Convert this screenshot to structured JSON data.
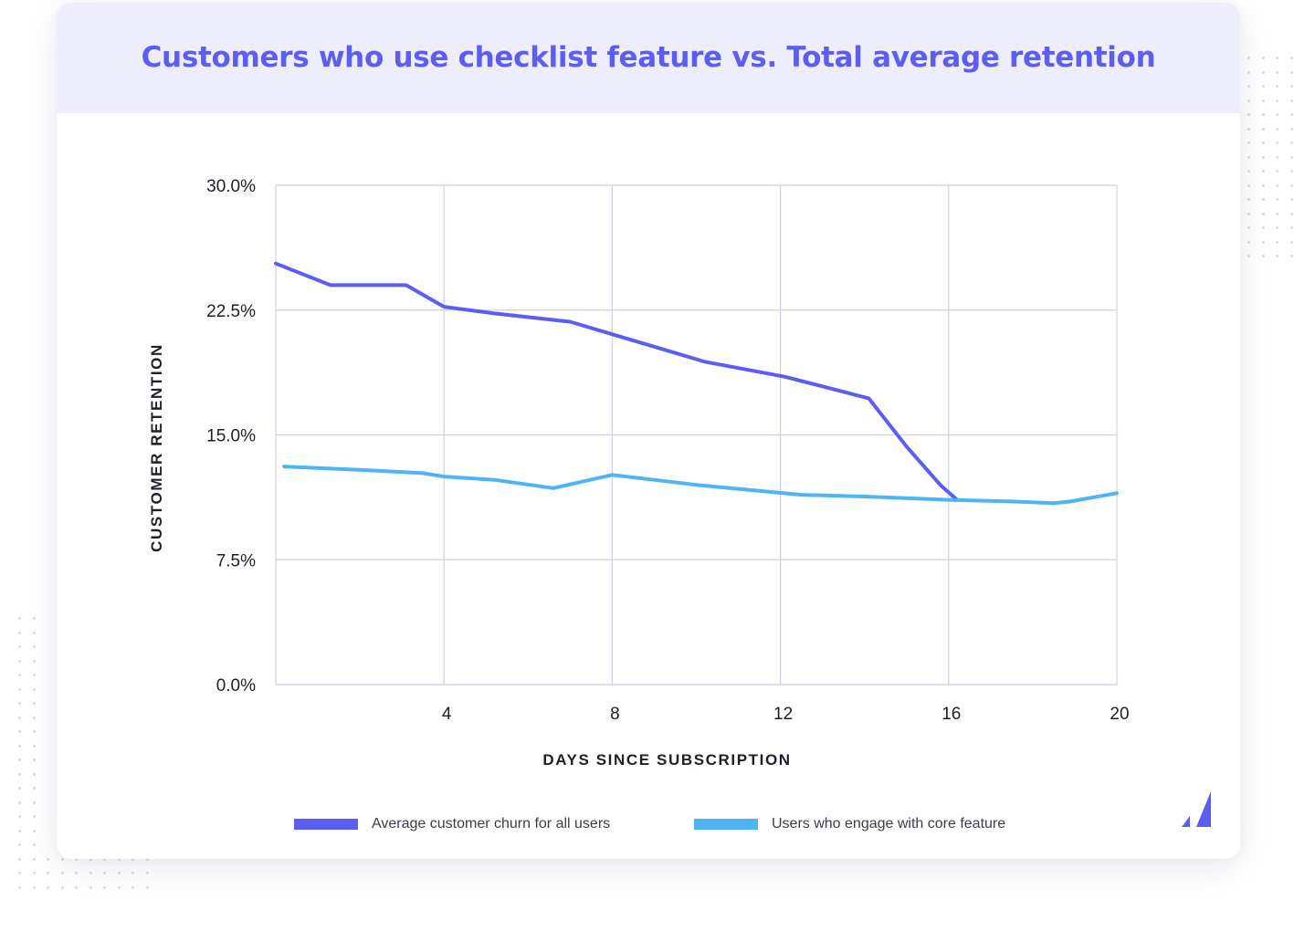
{
  "title": "Customers who use checklist feature vs. Total average retention",
  "colors": {
    "accent": "#5b5ef0",
    "series_churn": "#5b5ef0",
    "series_engage": "#4db5f5",
    "header_bg": "#eeedfb",
    "grid": "#cfd1e2"
  },
  "chart_data": {
    "type": "line",
    "title": "Customers who use checklist feature vs. Total average retention",
    "xlabel": "DAYS SINCE SUBSCRIPTION",
    "ylabel": "CUSTOMER RETENTION",
    "xlim": [
      0,
      20
    ],
    "ylim": [
      0,
      30
    ],
    "x_ticks": [
      4,
      8,
      12,
      16,
      20
    ],
    "x_tick_labels": [
      "4",
      "8",
      "12",
      "16",
      "20"
    ],
    "y_ticks": [
      0,
      7.5,
      15,
      22.5,
      30
    ],
    "y_tick_labels": [
      "0.0%",
      "7.5%",
      "15.0%",
      "22.5%",
      "30.0%"
    ],
    "grid": true,
    "legend_position": "bottom",
    "series": [
      {
        "name": "Average customer churn for all users",
        "color": "#5b5ef0",
        "x": [
          0,
          1.3,
          3.1,
          4,
          5.2,
          7,
          8.2,
          10.2,
          12.1,
          14.1,
          15,
          15.8,
          16.2
        ],
        "values": [
          25.3,
          24.0,
          24.0,
          22.7,
          22.3,
          21.8,
          20.9,
          19.4,
          18.5,
          17.2,
          14.3,
          12.0,
          11.1
        ]
      },
      {
        "name": "Users who engage with core feature",
        "color": "#4db5f5",
        "x": [
          0.2,
          2,
          3.5,
          4,
          5.2,
          6.6,
          8,
          10,
          12.5,
          14,
          16,
          17.5,
          18.5,
          18.9,
          20
        ],
        "values": [
          13.1,
          12.9,
          12.7,
          12.5,
          12.3,
          11.8,
          12.6,
          12.0,
          11.4,
          11.3,
          11.1,
          11.0,
          10.9,
          11.0,
          11.5
        ]
      }
    ]
  }
}
